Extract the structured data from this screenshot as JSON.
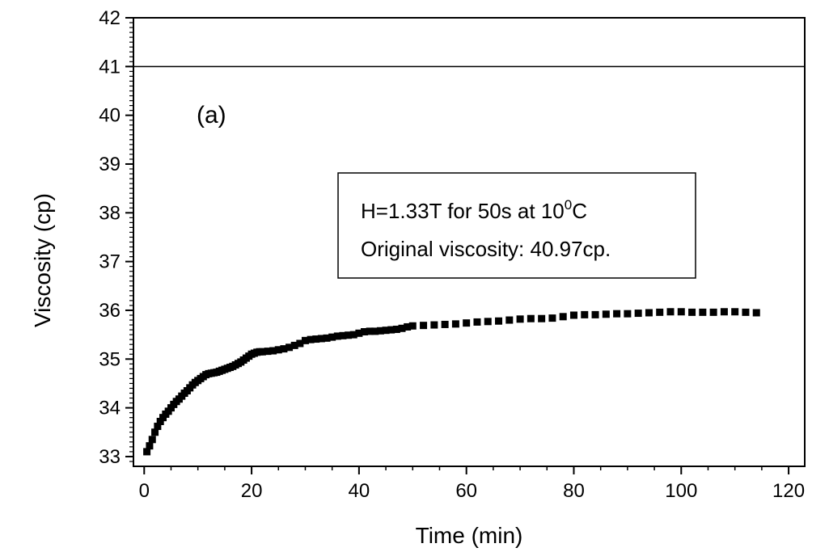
{
  "chart_data": {
    "type": "scatter",
    "xlabel": "Time (min)",
    "ylabel": "Viscosity (cp)",
    "xlim": [
      -2,
      123
    ],
    "ylim": [
      32.8,
      42
    ],
    "xticks": [
      0,
      20,
      40,
      60,
      80,
      100,
      120
    ],
    "yticks": [
      33,
      34,
      35,
      36,
      37,
      38,
      39,
      40,
      41,
      42
    ],
    "panel_label": "(a)",
    "legend_box": {
      "line1_main": "H=1.33T for 50s at 10",
      "line1_sup": "0",
      "line1_tail": "C",
      "line2": "Original viscosity: 40.97cp."
    },
    "reference_line": {
      "y": 41,
      "style": "solid",
      "color": "#000000"
    },
    "grid": false,
    "marker": "square",
    "series": [
      {
        "x": [
          0.5,
          1.0,
          1.5,
          2.0,
          2.5,
          3.0,
          3.5,
          4.0,
          4.5,
          5.0,
          5.5,
          6.0,
          6.5,
          7.0,
          7.5,
          8.0,
          8.5,
          9.0,
          9.5,
          10.0,
          10.5,
          11.0,
          11.5,
          12.0,
          12.5,
          13.0,
          13.5,
          14.0,
          14.5,
          15.0,
          15.5,
          16.0,
          16.5,
          17.0,
          17.5,
          18.0,
          18.5,
          19.0,
          19.5,
          20.0,
          20.5,
          21.0,
          21.5,
          22.0,
          23.0,
          24.0,
          25.0,
          26.0,
          27.0,
          28.0,
          29.0,
          30.0,
          31.0,
          32.0,
          33.0,
          34.0,
          35.0,
          36.0,
          37.0,
          38.0,
          39.0,
          40.0,
          41.0,
          42.0,
          43.0,
          44.0,
          45.0,
          46.0,
          47.0,
          48.0,
          49.0,
          50.0,
          52.0,
          54.0,
          56.0,
          58.0,
          60.0,
          62.0,
          64.0,
          66.0,
          68.0,
          70.0,
          72.0,
          74.0,
          76.0,
          78.0,
          80.0,
          82.0,
          84.0,
          86.0,
          88.0,
          90.0,
          92.0,
          94.0,
          96.0,
          98.0,
          100.0,
          102.0,
          104.0,
          106.0,
          108.0,
          110.0,
          112.0,
          114.0
        ],
        "y": [
          33.1,
          33.22,
          33.35,
          33.5,
          33.62,
          33.72,
          33.8,
          33.87,
          33.93,
          34.0,
          34.07,
          34.13,
          34.18,
          34.24,
          34.3,
          34.35,
          34.41,
          34.47,
          34.52,
          34.56,
          34.6,
          34.64,
          34.68,
          34.7,
          34.71,
          34.72,
          34.73,
          34.75,
          34.77,
          34.79,
          34.81,
          34.83,
          34.85,
          34.88,
          34.91,
          34.94,
          34.98,
          35.02,
          35.06,
          35.1,
          35.12,
          35.14,
          35.15,
          35.15,
          35.16,
          35.17,
          35.19,
          35.21,
          35.24,
          35.28,
          35.32,
          35.38,
          35.4,
          35.41,
          35.42,
          35.43,
          35.45,
          35.47,
          35.48,
          35.49,
          35.5,
          35.53,
          35.56,
          35.57,
          35.57,
          35.58,
          35.59,
          35.6,
          35.61,
          35.63,
          35.66,
          35.68,
          35.69,
          35.7,
          35.71,
          35.72,
          35.74,
          35.76,
          35.77,
          35.78,
          35.8,
          35.82,
          35.83,
          35.83,
          35.84,
          35.87,
          35.9,
          35.91,
          35.91,
          35.92,
          35.93,
          35.93,
          35.94,
          35.95,
          35.96,
          35.97,
          35.97,
          35.96,
          35.96,
          35.96,
          35.97,
          35.97,
          35.96,
          35.95
        ]
      }
    ]
  }
}
